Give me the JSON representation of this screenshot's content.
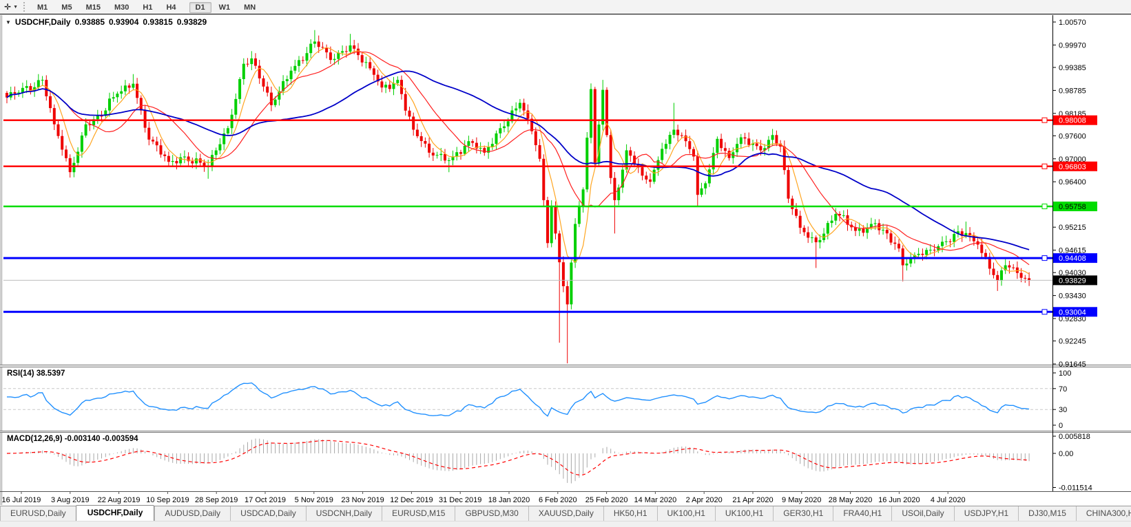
{
  "toolbar": {
    "cursor_tool_glyph": "✛",
    "dropdown_glyph": "▼",
    "timeframes": [
      {
        "label": "M1",
        "active": false
      },
      {
        "label": "M5",
        "active": false
      },
      {
        "label": "M15",
        "active": false
      },
      {
        "label": "M30",
        "active": false
      },
      {
        "label": "H1",
        "active": false
      },
      {
        "label": "H4",
        "active": false
      },
      {
        "label": "D1",
        "active": true
      },
      {
        "label": "W1",
        "active": false
      },
      {
        "label": "MN",
        "active": false
      }
    ]
  },
  "chart": {
    "collapse_glyph": "▼",
    "symbol_title": "USDCHF,Daily",
    "open": "0.93885",
    "high": "0.93904",
    "low": "0.93815",
    "close": "0.93829"
  },
  "rsi_panel": {
    "label": "RSI(14) 38.5397",
    "ticks": [
      "100",
      "70",
      "30",
      "0"
    ]
  },
  "macd_panel": {
    "label": "MACD(12,26,9) -0.003140 -0.003594",
    "ticks": [
      "0.005818",
      "0.00",
      "-0.011514"
    ]
  },
  "tabbar": {
    "scroll_left_glyph": "◄",
    "scroll_right_glyph": "►",
    "tabs": [
      {
        "label": "EURUSD,Daily",
        "active": false
      },
      {
        "label": "USDCHF,Daily",
        "active": true
      },
      {
        "label": "AUDUSD,Daily",
        "active": false
      },
      {
        "label": "USDCAD,Daily",
        "active": false
      },
      {
        "label": "USDCNH,Daily",
        "active": false
      },
      {
        "label": "EURUSD,M15",
        "active": false
      },
      {
        "label": "GBPUSD,M30",
        "active": false
      },
      {
        "label": "XAUUSD,Daily",
        "active": false
      },
      {
        "label": "HK50,H1",
        "active": false
      },
      {
        "label": "UK100,H1",
        "active": false
      },
      {
        "label": "UK100,H1",
        "active": false
      },
      {
        "label": "GER30,H1",
        "active": false
      },
      {
        "label": "FRA40,H1",
        "active": false
      },
      {
        "label": "USOil,Daily",
        "active": false
      },
      {
        "label": "USDJPY,H1",
        "active": false
      },
      {
        "label": "DJ30,M15",
        "active": false
      },
      {
        "label": "CHINA300,H4",
        "active": false
      }
    ]
  },
  "chart_data": {
    "type": "candlestick",
    "symbol": "USDCHF",
    "timeframe": "Daily",
    "ohlc_current": {
      "open": 0.93885,
      "high": 0.93904,
      "low": 0.93815,
      "close": 0.93829
    },
    "ylim": [
      0.91645,
      1.0057
    ],
    "candle_count": 260,
    "price_ticks": [
      "1.00570",
      "0.99970",
      "0.99385",
      "0.98785",
      "0.98185",
      "0.97600",
      "0.97000",
      "0.96400",
      "0.95215",
      "0.94615",
      "0.94030",
      "0.93430",
      "0.92830",
      "0.92245",
      "0.91645"
    ],
    "date_ticks": [
      "16 Jul 2019",
      "3 Aug 2019",
      "22 Aug 2019",
      "10 Sep 2019",
      "28 Sep 2019",
      "17 Oct 2019",
      "5 Nov 2019",
      "23 Nov 2019",
      "12 Dec 2019",
      "31 Dec 2019",
      "18 Jan 2020",
      "6 Feb 2020",
      "25 Feb 2020",
      "14 Mar 2020",
      "2 Apr 2020",
      "21 Apr 2020",
      "9 May 2020",
      "28 May 2020",
      "16 Jun 2020",
      "4 Jul 2020"
    ],
    "horizontal_lines": [
      {
        "price": 0.98008,
        "label": "0.98008",
        "color": "#ff0000",
        "text_color": "#ffffff",
        "width": 2.5
      },
      {
        "price": 0.96803,
        "label": "0.96803",
        "color": "#ff0000",
        "text_color": "#ffffff",
        "width": 2.5
      },
      {
        "price": 0.95758,
        "label": "0.95758",
        "color": "#00dc00",
        "text_color": "#000000",
        "width": 2.5
      },
      {
        "price": 0.94408,
        "label": "0.94408",
        "color": "#0000ff",
        "text_color": "#ffffff",
        "width": 3
      },
      {
        "price": 0.93004,
        "label": "0.93004",
        "color": "#0000ff",
        "text_color": "#ffffff",
        "width": 3
      }
    ],
    "current_price_line": {
      "price": 0.93829,
      "label": "0.93829",
      "line_color": "#bdbdbd",
      "tag_color": "#000000",
      "text_color": "#ffffff"
    },
    "candle_colors": {
      "bull": "#00cf00",
      "bear": "#ee0000"
    },
    "moving_averages": [
      {
        "period": 6,
        "color": "#ffa520",
        "width": 1.2
      },
      {
        "period": 16,
        "color": "#ff2020",
        "width": 1.2
      },
      {
        "period": 45,
        "color": "#0000c8",
        "width": 1.8
      }
    ],
    "rsi": {
      "period": 14,
      "current": 38.5397,
      "color": "#2090ff",
      "levels": [
        70,
        30
      ]
    },
    "macd": {
      "fast": 12,
      "slow": 26,
      "signal_period": 9,
      "current_main": -0.00314,
      "current_signal": -0.003594,
      "hist_color": "#a8a8a8",
      "signal_color": "#ff0000"
    },
    "close_anchors": [
      [
        0,
        0.986
      ],
      [
        4,
        0.9885
      ],
      [
        9,
        0.9906
      ],
      [
        12,
        0.979
      ],
      [
        16,
        0.9665
      ],
      [
        20,
        0.979
      ],
      [
        24,
        0.9812
      ],
      [
        28,
        0.987
      ],
      [
        32,
        0.9896
      ],
      [
        36,
        0.975
      ],
      [
        41,
        0.9692
      ],
      [
        45,
        0.9706
      ],
      [
        51,
        0.9682
      ],
      [
        56,
        0.978
      ],
      [
        60,
        0.9948
      ],
      [
        62,
        0.9962
      ],
      [
        67,
        0.984
      ],
      [
        72,
        0.993
      ],
      [
        78,
        1.0006
      ],
      [
        82,
        0.9958
      ],
      [
        87,
        0.9996
      ],
      [
        92,
        0.9936
      ],
      [
        95,
        0.9886
      ],
      [
        99,
        0.9906
      ],
      [
        103,
        0.9776
      ],
      [
        107,
        0.9716
      ],
      [
        112,
        0.9696
      ],
      [
        117,
        0.9746
      ],
      [
        121,
        0.9716
      ],
      [
        125,
        0.978
      ],
      [
        130,
        0.9846
      ],
      [
        133,
        0.9772
      ],
      [
        135,
        0.97
      ],
      [
        137,
        0.948
      ],
      [
        138,
        0.9576
      ],
      [
        140,
        0.943
      ],
      [
        142,
        0.932
      ],
      [
        144,
        0.953
      ],
      [
        146,
        0.962
      ],
      [
        148,
        0.9882
      ],
      [
        149,
        0.969
      ],
      [
        151,
        0.988
      ],
      [
        152,
        0.9762
      ],
      [
        153,
        0.965
      ],
      [
        154,
        0.9592
      ],
      [
        155,
        0.9625
      ],
      [
        157,
        0.9722
      ],
      [
        161,
        0.9656
      ],
      [
        163,
        0.964
      ],
      [
        166,
        0.9726
      ],
      [
        169,
        0.9776
      ],
      [
        172,
        0.9746
      ],
      [
        174,
        0.9706
      ],
      [
        175,
        0.9606
      ],
      [
        177,
        0.9636
      ],
      [
        180,
        0.9752
      ],
      [
        183,
        0.9702
      ],
      [
        186,
        0.9756
      ],
      [
        191,
        0.9722
      ],
      [
        194,
        0.9762
      ],
      [
        196,
        0.9732
      ],
      [
        198,
        0.9596
      ],
      [
        201,
        0.952
      ],
      [
        205,
        0.9482
      ],
      [
        210,
        0.9556
      ],
      [
        215,
        0.9512
      ],
      [
        220,
        0.9532
      ],
      [
        226,
        0.9466
      ],
      [
        227,
        0.9422
      ],
      [
        231,
        0.9452
      ],
      [
        236,
        0.9472
      ],
      [
        243,
        0.9506
      ],
      [
        246,
        0.9476
      ],
      [
        251,
        0.9382
      ],
      [
        253,
        0.9422
      ],
      [
        256,
        0.9402
      ],
      [
        259,
        0.93829
      ]
    ],
    "special_lows": [
      [
        16,
        0.9659
      ],
      [
        51,
        0.9648
      ],
      [
        112,
        0.9665
      ],
      [
        140,
        0.922
      ],
      [
        142,
        0.9166
      ],
      [
        154,
        0.9505
      ],
      [
        175,
        0.9575
      ],
      [
        205,
        0.9415
      ],
      [
        227,
        0.938
      ],
      [
        251,
        0.9355
      ]
    ],
    "special_highs": [
      [
        9,
        0.9916
      ],
      [
        32,
        0.9921
      ],
      [
        62,
        0.9981
      ],
      [
        78,
        1.0036
      ],
      [
        87,
        1.0026
      ],
      [
        130,
        0.9856
      ],
      [
        151,
        0.9906
      ],
      [
        169,
        0.9846
      ],
      [
        243,
        0.9536
      ]
    ]
  }
}
